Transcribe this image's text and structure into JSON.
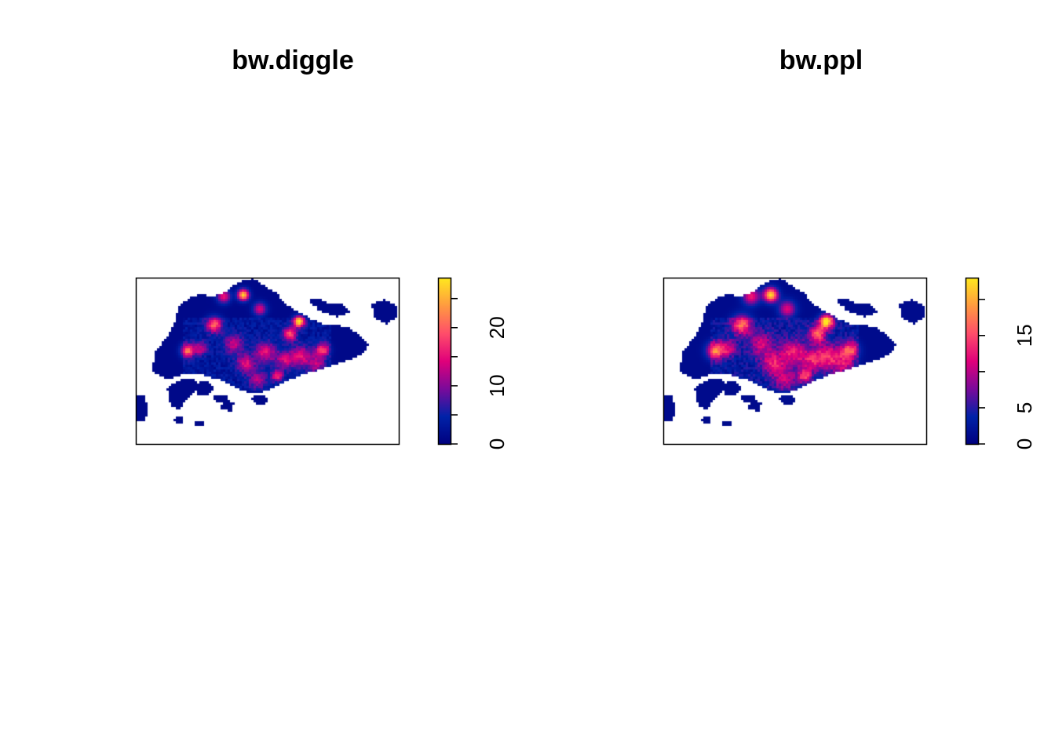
{
  "chart_data": [
    {
      "type": "heatmap",
      "title": "bw.diggle",
      "xlabel": "",
      "ylabel": "",
      "color_scale": {
        "range": [
          0,
          28.6
        ],
        "ticks": [
          0,
          5,
          10,
          15,
          20,
          25
        ],
        "tick_labels": [
          "0",
          "10",
          "20"
        ],
        "labeled_ticks": [
          0,
          10,
          20
        ],
        "colors": [
          "#00007f",
          "#0022a8",
          "#7a0a9a",
          "#e0007a",
          "#ff4d6a",
          "#ff9a40",
          "#ffe81e"
        ]
      }
    },
    {
      "type": "heatmap",
      "title": "bw.ppl",
      "xlabel": "",
      "ylabel": "",
      "color_scale": {
        "range": [
          0,
          23
        ],
        "ticks": [
          0,
          5,
          10,
          15,
          20
        ],
        "tick_labels": [
          "0",
          "5",
          "15"
        ],
        "labeled_ticks": [
          0,
          5,
          15
        ],
        "colors": [
          "#00007f",
          "#0022a8",
          "#7a0a9a",
          "#e0007a",
          "#ff4d6a",
          "#ff9a40",
          "#ffe81e"
        ]
      }
    }
  ]
}
